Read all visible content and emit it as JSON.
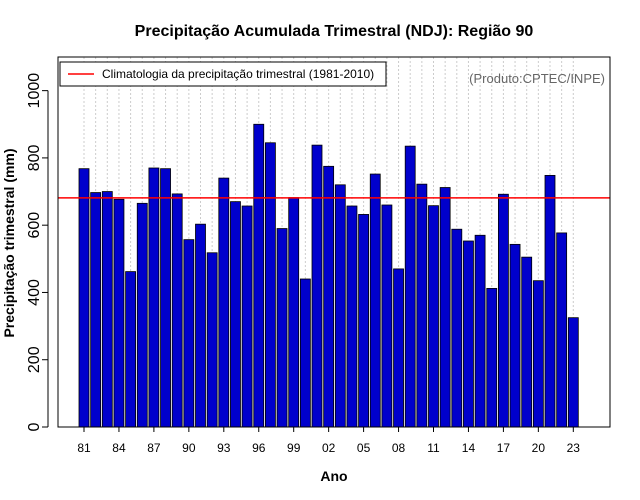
{
  "chart_data": {
    "type": "bar",
    "title": "Precipitação Acumulada Trimestral (NDJ): Região 90",
    "xlabel": "Ano",
    "ylabel": "Precipitação trimestral (mm)",
    "ylim": [
      0,
      1100
    ],
    "yticks": [
      0,
      200,
      400,
      600,
      800,
      1000
    ],
    "categories": [
      "1981",
      "1982",
      "1983",
      "1984",
      "1985",
      "1986",
      "1987",
      "1988",
      "1989",
      "1990",
      "1991",
      "1992",
      "1993",
      "1994",
      "1995",
      "1996",
      "1997",
      "1998",
      "1999",
      "2000",
      "2001",
      "2002",
      "2003",
      "2004",
      "2005",
      "2006",
      "2007",
      "2008",
      "2009",
      "2010",
      "2011",
      "2012",
      "2013",
      "2014",
      "2015",
      "2016",
      "2017",
      "2018",
      "2019",
      "2020",
      "2021",
      "2022",
      "2023"
    ],
    "xtick_labels": [
      "81",
      "84",
      "87",
      "90",
      "93",
      "96",
      "99",
      "02",
      "05",
      "08",
      "11",
      "14",
      "17",
      "20",
      "23"
    ],
    "xtick_step": 3,
    "values": [
      768,
      697,
      700,
      677,
      462,
      665,
      770,
      768,
      693,
      557,
      603,
      518,
      740,
      670,
      657,
      900,
      845,
      590,
      682,
      440,
      838,
      775,
      720,
      657,
      632,
      752,
      660,
      470,
      835,
      722,
      658,
      712,
      588,
      553,
      570,
      412,
      692,
      543,
      505,
      435,
      748,
      577,
      325
    ],
    "bar_color": "#0000cc",
    "bar_edge_color": "#000000",
    "reference_line": {
      "label": "Climatologia da precipitação trimestral (1981-2010)",
      "value": 681,
      "color": "#ff0000"
    },
    "legend_position": "top-left",
    "grid": "vertical dotted",
    "credit": "(Produto:CPTEC/INPE)"
  }
}
